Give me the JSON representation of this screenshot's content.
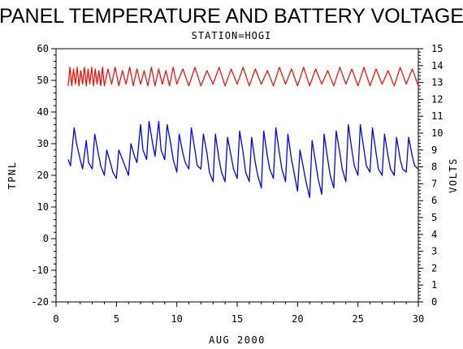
{
  "chart_data": {
    "type": "line",
    "title": "PANEL TEMPERATURE AND BATTERY VOLTAGE",
    "subtitle": "STATION=HOGI",
    "xlabel": "AUG 2000",
    "ylabel": "TPNL",
    "y2label": "VOLTS",
    "xlim": [
      0,
      30
    ],
    "ylim": [
      -20,
      60
    ],
    "y2lim": [
      0,
      15
    ],
    "x_ticks": [
      "0",
      "5",
      "10",
      "15",
      "20",
      "25",
      "30"
    ],
    "y_ticks": [
      "-20",
      "-10",
      "0",
      "10",
      "20",
      "30",
      "40",
      "50",
      "60"
    ],
    "y2_ticks": [
      "0",
      "1",
      "2",
      "3",
      "4",
      "5",
      "6",
      "7",
      "8",
      "9",
      "10",
      "11",
      "12",
      "13",
      "14",
      "15"
    ],
    "series": [
      {
        "axis": "left",
        "color": "#0000ff",
        "x": [
          1.0,
          1.2,
          1.5,
          1.7,
          2.0,
          2.2,
          2.5,
          2.7,
          3.0,
          3.2,
          3.5,
          3.7,
          4.0,
          4.2,
          4.5,
          4.7,
          5.0,
          5.2,
          5.5,
          5.7,
          6.0,
          6.2,
          6.5,
          6.7,
          7.0,
          7.2,
          7.5,
          7.7,
          8.0,
          8.2,
          8.5,
          8.7,
          9.0,
          9.2,
          9.5,
          9.7,
          10.0,
          10.2,
          10.5,
          10.7,
          11.0,
          11.2,
          11.5,
          11.7,
          12.0,
          12.2,
          12.5,
          12.7,
          13.0,
          13.2,
          13.5,
          13.7,
          14.0,
          14.2,
          14.5,
          14.7,
          15.0,
          15.2,
          15.5,
          15.7,
          16.0,
          16.2,
          16.5,
          16.7,
          17.0,
          17.2,
          17.5,
          17.7,
          18.0,
          18.2,
          18.5,
          18.7,
          19.0,
          19.2,
          19.5,
          19.7,
          20.0,
          20.2,
          20.5,
          20.7,
          21.0,
          21.2,
          21.5,
          21.7,
          22.0,
          22.2,
          22.5,
          22.7,
          23.0,
          23.2,
          23.5,
          23.7,
          24.0,
          24.2,
          24.5,
          24.7,
          25.0,
          25.2,
          25.5,
          25.7,
          26.0,
          26.2,
          26.5,
          26.7,
          27.0,
          27.2,
          27.5,
          27.7,
          28.0,
          28.2,
          28.5,
          28.7,
          29.0,
          29.2,
          29.5,
          29.7,
          30.0
        ],
        "values": [
          25,
          23,
          35,
          30,
          25,
          22,
          31,
          24,
          22,
          33,
          27,
          23,
          20,
          28,
          24,
          21,
          19,
          28,
          25,
          23,
          20,
          30,
          26,
          24,
          36,
          28,
          25,
          37,
          30,
          26,
          37,
          28,
          25,
          36,
          30,
          25,
          21,
          33,
          27,
          24,
          22,
          35,
          28,
          23,
          22,
          33,
          27,
          21,
          18,
          33,
          25,
          21,
          18,
          32,
          26,
          22,
          19,
          34,
          27,
          21,
          18,
          32,
          24,
          20,
          16,
          34,
          26,
          22,
          19,
          35,
          27,
          22,
          18,
          33,
          25,
          21,
          15,
          28,
          22,
          18,
          13,
          31,
          24,
          19,
          14,
          33,
          25,
          20,
          16,
          34,
          27,
          22,
          18,
          36,
          28,
          23,
          20,
          36,
          28,
          23,
          21,
          35,
          27,
          22,
          20,
          33,
          26,
          22,
          20,
          32,
          25,
          22,
          21,
          32,
          26,
          23,
          22
        ]
      },
      {
        "axis": "right",
        "color": "#ff0000",
        "x": [
          1.0,
          1.15,
          1.3,
          1.45,
          1.6,
          1.75,
          1.9,
          2.05,
          2.2,
          2.35,
          2.5,
          2.65,
          2.8,
          2.95,
          3.1,
          3.25,
          3.4,
          3.55,
          3.7,
          3.85,
          4.0,
          4.3,
          4.6,
          4.9,
          5.2,
          5.5,
          5.8,
          6.1,
          6.4,
          6.7,
          7.0,
          7.3,
          7.6,
          7.9,
          8.2,
          8.5,
          8.8,
          9.1,
          9.4,
          9.7,
          10.0,
          10.5,
          11.0,
          11.5,
          12.0,
          12.5,
          13.0,
          13.5,
          14.0,
          14.5,
          15.0,
          15.5,
          16.0,
          16.5,
          17.0,
          17.5,
          18.0,
          18.5,
          19.0,
          19.5,
          20.0,
          20.5,
          21.0,
          21.5,
          22.0,
          22.5,
          23.0,
          23.5,
          24.0,
          24.5,
          25.0,
          25.5,
          26.0,
          26.5,
          27.0,
          27.5,
          28.0,
          28.5,
          29.0,
          29.5,
          30.0
        ],
        "values": [
          12.8,
          13.9,
          12.8,
          13.8,
          12.9,
          13.9,
          12.8,
          13.7,
          12.9,
          13.9,
          12.8,
          13.8,
          12.9,
          13.9,
          12.8,
          13.8,
          12.9,
          13.7,
          12.8,
          13.9,
          12.8,
          13.8,
          12.9,
          13.9,
          12.8,
          13.7,
          12.9,
          13.9,
          12.8,
          13.8,
          12.9,
          13.7,
          12.8,
          13.9,
          12.8,
          13.8,
          12.9,
          13.7,
          12.8,
          13.9,
          12.9,
          13.8,
          12.8,
          13.9,
          12.8,
          13.7,
          12.9,
          13.9,
          12.8,
          13.8,
          12.9,
          13.9,
          12.8,
          13.8,
          12.9,
          13.7,
          12.8,
          13.9,
          12.9,
          13.8,
          12.8,
          13.9,
          12.8,
          13.8,
          12.9,
          13.7,
          12.8,
          13.9,
          12.9,
          13.8,
          12.8,
          13.9,
          12.8,
          13.8,
          12.9,
          13.7,
          12.8,
          13.9,
          12.9,
          13.8,
          12.8
        ]
      }
    ]
  }
}
